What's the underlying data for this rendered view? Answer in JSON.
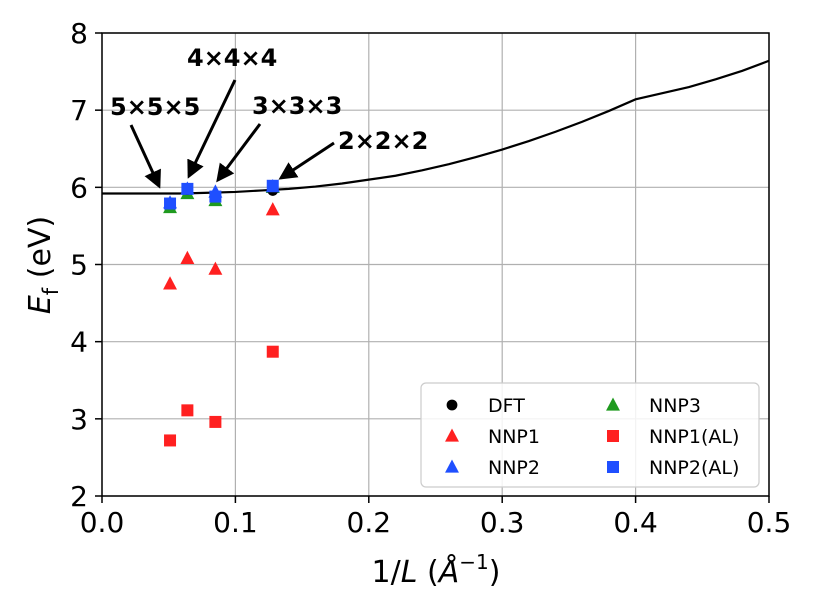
{
  "chart_data": {
    "type": "scatter",
    "xlabel_main": "1/",
    "xlabel_italic": "L",
    "xlabel_open": " (",
    "xlabel_unit": "Å",
    "xlabel_exp": "−1",
    "xlabel_close": ")",
    "ylabel_main": "E",
    "ylabel_sub": "f",
    "ylabel_unit": " (eV)",
    "xlim": [
      0.0,
      0.5
    ],
    "ylim": [
      2,
      8
    ],
    "x_ticks": [
      0.0,
      0.1,
      0.2,
      0.3,
      0.4,
      0.5
    ],
    "x_tick_labels": [
      "0.0",
      "0.1",
      "0.2",
      "0.3",
      "0.4",
      "0.5"
    ],
    "y_ticks": [
      2,
      3,
      4,
      5,
      6,
      7,
      8
    ],
    "y_tick_labels": [
      "2",
      "3",
      "4",
      "5",
      "6",
      "7",
      "8"
    ],
    "grid": true,
    "fit_curve": {
      "x": [
        0.0,
        0.02,
        0.04,
        0.06,
        0.08,
        0.1,
        0.12,
        0.14,
        0.16,
        0.18,
        0.2,
        0.22,
        0.24,
        0.26,
        0.28,
        0.3,
        0.32,
        0.34,
        0.36,
        0.38,
        0.4,
        0.42,
        0.44,
        0.46,
        0.48,
        0.5
      ],
      "y": [
        5.92,
        5.92,
        5.92,
        5.92,
        5.93,
        5.94,
        5.96,
        5.98,
        6.01,
        6.05,
        6.1,
        6.15,
        6.22,
        6.3,
        6.39,
        6.49,
        6.6,
        6.72,
        6.85,
        6.99,
        7.14,
        7.22,
        7.3,
        7.4,
        7.51,
        7.64
      ]
    },
    "series": [
      {
        "name": "DFT",
        "marker": "circle",
        "color": "#000000",
        "x": [
          0.051,
          0.064,
          0.085,
          0.128
        ],
        "y": [
          5.8,
          5.97,
          5.89,
          5.96
        ]
      },
      {
        "name": "NNP1",
        "marker": "triangle",
        "color": "#ff2020",
        "x": [
          0.051,
          0.064,
          0.085,
          0.128
        ],
        "y": [
          4.75,
          5.08,
          4.94,
          5.71
        ]
      },
      {
        "name": "NNP2",
        "marker": "triangle",
        "color": "#1f4fff",
        "x": [
          0.051,
          0.064,
          0.085,
          0.128
        ],
        "y": [
          5.8,
          5.98,
          5.94,
          6.01
        ]
      },
      {
        "name": "NNP3",
        "marker": "triangle",
        "color": "#1f9a1f",
        "x": [
          0.051,
          0.064,
          0.085,
          0.128
        ],
        "y": [
          5.74,
          5.92,
          5.83,
          6.0
        ]
      },
      {
        "name": "NNP1(AL)",
        "marker": "square",
        "color": "#ff2020",
        "x": [
          0.051,
          0.064,
          0.085,
          0.128
        ],
        "y": [
          2.72,
          3.11,
          2.96,
          3.87
        ]
      },
      {
        "name": "NNP2(AL)",
        "marker": "square",
        "color": "#1f4fff",
        "x": [
          0.051,
          0.064,
          0.085,
          0.128
        ],
        "y": [
          5.79,
          5.98,
          5.88,
          6.02
        ]
      }
    ],
    "annotations": [
      {
        "text": "5×5×5",
        "point": [
          0.051,
          5.85
        ]
      },
      {
        "text": "4×4×4",
        "point": [
          0.066,
          6.05
        ]
      },
      {
        "text": "3×3×3",
        "point": [
          0.088,
          6.0
        ]
      },
      {
        "text": "2×2×2",
        "point": [
          0.132,
          6.1
        ]
      }
    ],
    "legend": {
      "position": "bottom-right",
      "columns": 2
    }
  }
}
